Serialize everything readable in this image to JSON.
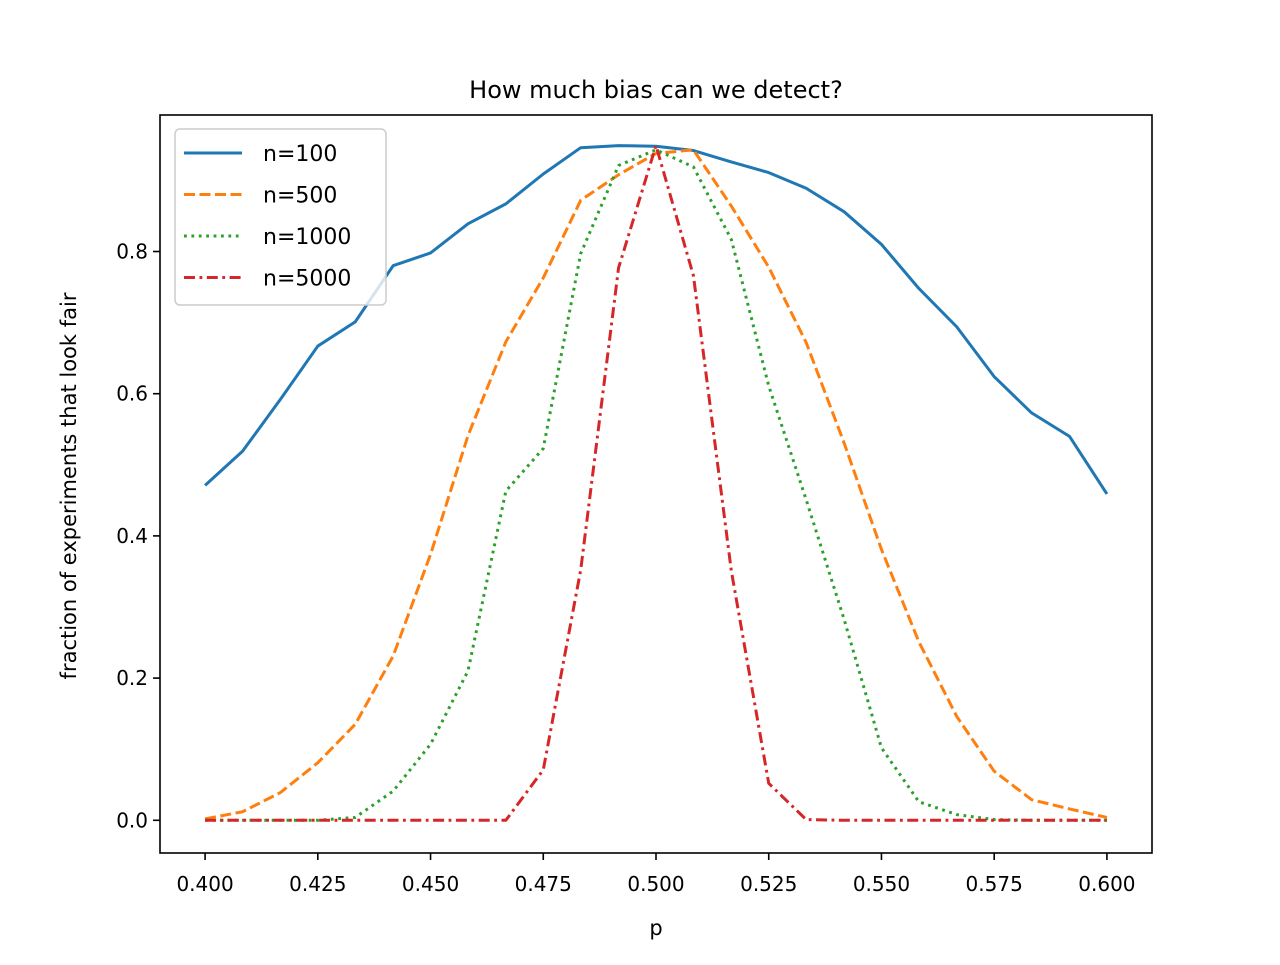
{
  "chart_data": {
    "type": "line",
    "title": "How much bias can we detect?",
    "xlabel": "p",
    "ylabel": "fraction of experiments that look fair",
    "xlim": [
      0.39,
      0.61
    ],
    "ylim": [
      -0.046,
      0.992
    ],
    "x_ticks": [
      0.4,
      0.425,
      0.45,
      0.475,
      0.5,
      0.525,
      0.55,
      0.575,
      0.6
    ],
    "x_tick_labels": [
      "0.400",
      "0.425",
      "0.450",
      "0.475",
      "0.500",
      "0.525",
      "0.550",
      "0.575",
      "0.600"
    ],
    "y_ticks": [
      0.0,
      0.2,
      0.4,
      0.6,
      0.8
    ],
    "y_tick_labels": [
      "0.0",
      "0.2",
      "0.4",
      "0.6",
      "0.8"
    ],
    "grid": false,
    "legend_position": "top-left",
    "x": [
      0.4,
      0.4083,
      0.4167,
      0.425,
      0.4333,
      0.4417,
      0.45,
      0.4583,
      0.4667,
      0.475,
      0.4833,
      0.4917,
      0.5,
      0.5083,
      0.5167,
      0.525,
      0.5333,
      0.5417,
      0.55,
      0.5583,
      0.5667,
      0.575,
      0.5833,
      0.5917,
      0.6
    ],
    "series": [
      {
        "name": "n=100",
        "color": "#1f77b4",
        "dash": "solid",
        "values": [
          0.471,
          0.519,
          0.592,
          0.667,
          0.701,
          0.78,
          0.798,
          0.839,
          0.867,
          0.909,
          0.946,
          0.949,
          0.948,
          0.942,
          0.926,
          0.911,
          0.889,
          0.856,
          0.81,
          0.748,
          0.694,
          0.624,
          0.573,
          0.54,
          0.459
        ]
      },
      {
        "name": "n=500",
        "color": "#ff7f0e",
        "dash": "dashed",
        "values": [
          0.002,
          0.012,
          0.039,
          0.081,
          0.135,
          0.231,
          0.374,
          0.541,
          0.673,
          0.763,
          0.872,
          0.908,
          0.938,
          0.943,
          0.864,
          0.778,
          0.672,
          0.531,
          0.381,
          0.251,
          0.146,
          0.069,
          0.029,
          0.016,
          0.004
        ]
      },
      {
        "name": "n=1000",
        "color": "#2ca02c",
        "dash": "dotted",
        "values": [
          0.0,
          0.0,
          0.0,
          0.0,
          0.004,
          0.041,
          0.107,
          0.21,
          0.463,
          0.523,
          0.797,
          0.921,
          0.943,
          0.919,
          0.817,
          0.611,
          0.451,
          0.283,
          0.102,
          0.026,
          0.008,
          0.001,
          0.0,
          0.0,
          0.0
        ]
      },
      {
        "name": "n=5000",
        "color": "#d62728",
        "dash": "dashdot",
        "values": [
          0.0,
          0.0,
          0.0,
          0.0,
          0.0,
          0.0,
          0.0,
          0.0,
          0.0,
          0.071,
          0.352,
          0.777,
          0.949,
          0.766,
          0.351,
          0.052,
          0.001,
          0.0,
          0.0,
          0.0,
          0.0,
          0.0,
          0.0,
          0.0,
          0.0
        ]
      }
    ]
  }
}
